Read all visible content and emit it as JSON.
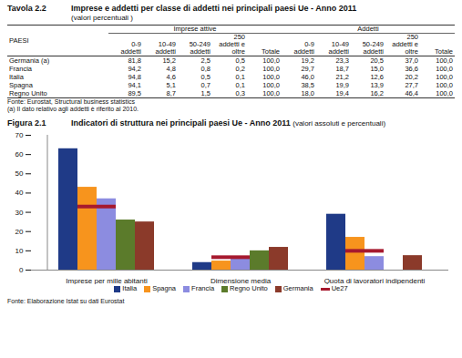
{
  "table": {
    "label": "Tavola 2.2",
    "title": "Imprese e addetti per classe di addetti nei principali paesi Ue - Anno 2011",
    "subtitle": "(valori percentuali )",
    "row_header": "PAESI",
    "groups": [
      {
        "name": "Imprese attive",
        "columns": [
          "0-9 addetti",
          "10-49 addetti",
          "50-249 addetti",
          "250 addetti e oltre",
          "Totale"
        ]
      },
      {
        "name": "Addetti",
        "columns": [
          "0-9 addetti",
          "10-49 addetti",
          "50-249 addetti",
          "250 addetti e oltre",
          "Totale"
        ]
      }
    ],
    "rows": [
      [
        "Germania (a)",
        "81,8",
        "15,2",
        "2,5",
        "0,5",
        "100,0",
        "19,2",
        "23,3",
        "20,5",
        "37,0",
        "100,0"
      ],
      [
        "Francia",
        "94,2",
        "4,8",
        "0,8",
        "0,2",
        "100,0",
        "29,7",
        "18,7",
        "15,0",
        "36,6",
        "100,0"
      ],
      [
        "Italia",
        "94,8",
        "4,6",
        "0,5",
        "0,1",
        "100,0",
        "46,0",
        "21,2",
        "12,6",
        "20,2",
        "100,0"
      ],
      [
        "Spagna",
        "94,1",
        "5,1",
        "0,7",
        "0,1",
        "100,0",
        "38,5",
        "19,9",
        "13,9",
        "27,7",
        "100,0"
      ],
      [
        "Regno Unito",
        "89,5",
        "8,7",
        "1,5",
        "0,3",
        "100,0",
        "18,0",
        "19,4",
        "16,2",
        "46,4",
        "100,0"
      ]
    ],
    "notes": [
      "Fonte: Eurostat, Structural business statistics",
      "(a) Il dato relativo agli addetti è riferito al 2010."
    ]
  },
  "chart_data": {
    "type": "bar",
    "label": "Figura 2.1",
    "title": "Indicatori di struttura nei principali paesi Ue - Anno 2011",
    "subtitle": "(valori assoluti e percentuali)",
    "categories": [
      "Imprese per mille abitanti",
      "Dimensione media",
      "Quota di lavoratori indipendenti"
    ],
    "series": [
      {
        "name": "Italia",
        "color": "#1f3a87",
        "values": [
          63,
          3.9,
          29
        ]
      },
      {
        "name": "Spagna",
        "color": "#f7941d",
        "values": [
          43,
          4.7,
          17
        ]
      },
      {
        "name": "Francia",
        "color": "#8c8ce0",
        "values": [
          37,
          5.7,
          7
        ]
      },
      {
        "name": "Regno Unito",
        "color": "#5b7b2b",
        "values": [
          26,
          10,
          null
        ]
      },
      {
        "name": "Germania",
        "color": "#8b3a2a",
        "values": [
          25,
          11.8,
          7.5
        ]
      },
      {
        "name": "Ue27",
        "color": "#a6192e",
        "type": "tick",
        "values": [
          33,
          6.7,
          10
        ]
      }
    ],
    "ylim": [
      0,
      70
    ],
    "yticks": [
      0,
      10,
      20,
      30,
      40,
      50,
      60,
      70
    ],
    "grid": false,
    "legend": "bottom",
    "source": "Fonte: Elaborazione Istat su dati Eurostat"
  }
}
